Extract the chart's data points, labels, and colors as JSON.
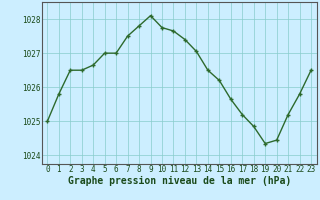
{
  "x": [
    0,
    1,
    2,
    3,
    4,
    5,
    6,
    7,
    8,
    9,
    10,
    11,
    12,
    13,
    14,
    15,
    16,
    17,
    18,
    19,
    20,
    21,
    22,
    23
  ],
  "y": [
    1025.0,
    1025.8,
    1026.5,
    1026.5,
    1026.65,
    1027.0,
    1027.0,
    1027.5,
    1027.8,
    1028.1,
    1027.75,
    1027.65,
    1027.4,
    1027.05,
    1026.5,
    1026.2,
    1025.65,
    1025.2,
    1024.85,
    1024.35,
    1024.45,
    1025.2,
    1025.8,
    1026.5
  ],
  "line_color": "#2d6a2d",
  "marker": "+",
  "marker_size": 3,
  "marker_lw": 1.0,
  "line_width": 1.0,
  "bg_color": "#cceeff",
  "grid_color": "#88cccc",
  "grid_lw": 0.5,
  "xlabel": "Graphe pression niveau de la mer (hPa)",
  "xlabel_fontsize": 7,
  "xlabel_color": "#1a4a1a",
  "tick_color": "#1a4a1a",
  "ylim": [
    1023.75,
    1028.5
  ],
  "yticks": [
    1024,
    1025,
    1026,
    1027,
    1028
  ],
  "xlim": [
    -0.5,
    23.5
  ],
  "xticks": [
    0,
    1,
    2,
    3,
    4,
    5,
    6,
    7,
    8,
    9,
    10,
    11,
    12,
    13,
    14,
    15,
    16,
    17,
    18,
    19,
    20,
    21,
    22,
    23
  ],
  "tick_fontsize": 5.5,
  "border_color": "#555555",
  "fig_w": 3.2,
  "fig_h": 2.0,
  "dpi": 100
}
